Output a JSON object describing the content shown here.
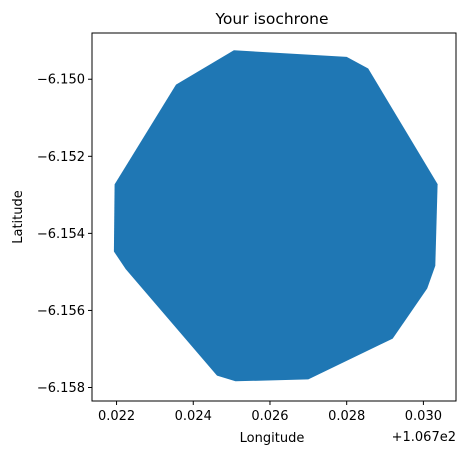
{
  "chart_data": {
    "type": "area",
    "title": "Your isochrone",
    "xlabel": "Longitude",
    "ylabel": "Latitude",
    "x_offset_label": "+1.067e2",
    "xlim": [
      0.02136,
      0.03085
    ],
    "ylim": [
      -6.15835,
      -6.1488
    ],
    "x_ticks": [
      {
        "value": 0.022,
        "label": "0.022"
      },
      {
        "value": 0.024,
        "label": "0.024"
      },
      {
        "value": 0.026,
        "label": "0.026"
      },
      {
        "value": 0.028,
        "label": "0.028"
      },
      {
        "value": 0.03,
        "label": "0.030"
      }
    ],
    "y_ticks": [
      {
        "value": -6.15,
        "label": "−6.150"
      },
      {
        "value": -6.152,
        "label": "−6.152"
      },
      {
        "value": -6.154,
        "label": "−6.154"
      },
      {
        "value": -6.156,
        "label": "−6.156"
      },
      {
        "value": -6.158,
        "label": "−6.158"
      }
    ],
    "grid": false,
    "series": [
      {
        "color": "#1f77b4",
        "polygon": [
          [
            0.02506,
            -6.14925
          ],
          [
            0.028,
            -6.14942
          ],
          [
            0.02856,
            -6.14972
          ],
          [
            0.03037,
            -6.15272
          ],
          [
            0.03031,
            -6.15484
          ],
          [
            0.0301,
            -6.15543
          ],
          [
            0.0292,
            -6.15673
          ],
          [
            0.027,
            -6.15779
          ],
          [
            0.0251,
            -6.15784
          ],
          [
            0.02462,
            -6.15769
          ],
          [
            0.02224,
            -6.15493
          ],
          [
            0.02193,
            -6.15447
          ],
          [
            0.02195,
            -6.15273
          ],
          [
            0.02355,
            -6.15014
          ]
        ]
      }
    ]
  }
}
